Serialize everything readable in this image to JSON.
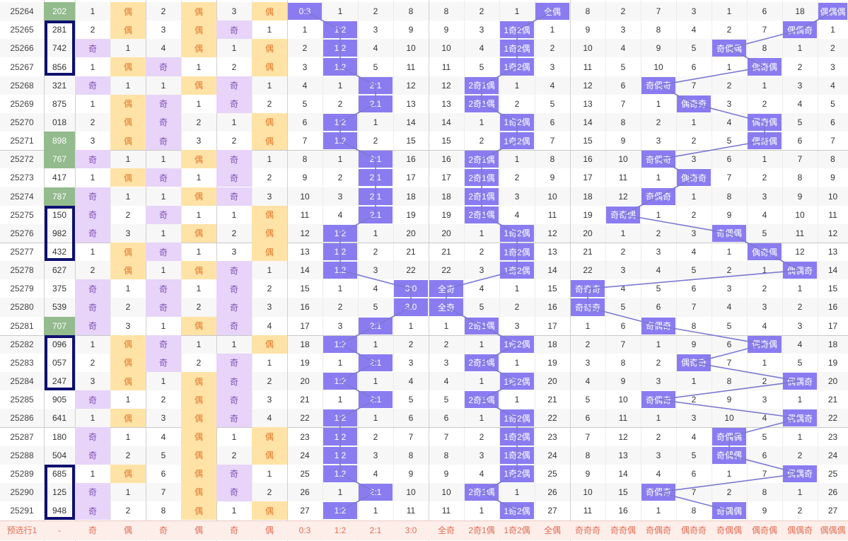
{
  "colors": {
    "purple_badge": "#8a7cf0",
    "ji_bg": "#e7d4f8",
    "ou_bg": "#ffe3a6",
    "ou_text": "#e0772a",
    "green_num": "#93bb8d",
    "footer_bg": "#fdeeea",
    "footer_text": "#e06e54",
    "line_color": "#7b79d1",
    "box_border": "#0f1070"
  },
  "rows": [
    {
      "period": "25264",
      "num": "202",
      "g": 1,
      "c3": "1",
      "c4": "偶",
      "c5": "2",
      "c6": "偶",
      "c7": "3",
      "c8": "偶",
      "c9": "0:3",
      "c10": "1",
      "c11": "2",
      "c12": "8",
      "c13": "8",
      "c14": "2",
      "c15": "1",
      "c16": "全偶",
      "c17": "8",
      "c18": "2",
      "c19": "7",
      "c20": "3",
      "c21": "1",
      "c22": "6",
      "c23": "18",
      "c24": "偶偶偶"
    },
    {
      "period": "25265",
      "num": "281",
      "c3": "2",
      "c4": "偶",
      "c5": "3",
      "c6": "偶",
      "c7": "奇",
      "c8": "1",
      "c9": "1",
      "c10": "1:2",
      "c11": "3",
      "c12": "9",
      "c13": "9",
      "c14": "3",
      "c15": "1奇2偶",
      "c16": "1",
      "c17": "9",
      "c18": "3",
      "c19": "8",
      "c20": "4",
      "c21": "2",
      "c22": "7",
      "c23": "偶偶奇",
      "c24": "1"
    },
    {
      "period": "25266",
      "num": "742",
      "c3": "奇",
      "c4": "1",
      "c5": "4",
      "c6": "偶",
      "c7": "1",
      "c8": "偶",
      "c9": "2",
      "c10": "1:2",
      "c11": "4",
      "c12": "10",
      "c13": "10",
      "c14": "4",
      "c15": "1奇2偶",
      "c16": "2",
      "c17": "10",
      "c18": "4",
      "c19": "9",
      "c20": "5",
      "c21": "奇偶偶",
      "c22": "8",
      "c23": "1",
      "c24": "2"
    },
    {
      "period": "25267",
      "num": "856",
      "c3": "1",
      "c4": "偶",
      "c5": "奇",
      "c6": "1",
      "c7": "2",
      "c8": "偶",
      "c9": "3",
      "c10": "1:2",
      "c11": "5",
      "c12": "11",
      "c13": "11",
      "c14": "5",
      "c15": "1奇2偶",
      "c16": "3",
      "c17": "11",
      "c18": "5",
      "c19": "10",
      "c20": "6",
      "c21": "1",
      "c22": "偶奇偶",
      "c23": "2",
      "c24": "3"
    },
    {
      "period": "25268",
      "num": "321",
      "c3": "奇",
      "c4": "1",
      "c5": "1",
      "c6": "偶",
      "c7": "奇",
      "c8": "1",
      "c9": "4",
      "c10": "1",
      "c11": "2:1",
      "c12": "12",
      "c13": "12",
      "c14": "2奇1偶",
      "c15": "1",
      "c16": "4",
      "c17": "12",
      "c18": "6",
      "c19": "奇偶奇",
      "c20": "7",
      "c21": "2",
      "c22": "1",
      "c23": "3",
      "c24": "4"
    },
    {
      "period": "25269",
      "num": "875",
      "c3": "1",
      "c4": "偶",
      "c5": "奇",
      "c6": "1",
      "c7": "奇",
      "c8": "2",
      "c9": "5",
      "c10": "2",
      "c11": "2:1",
      "c12": "13",
      "c13": "13",
      "c14": "2奇1偶",
      "c15": "2",
      "c16": "5",
      "c17": "13",
      "c18": "7",
      "c19": "1",
      "c20": "偶奇奇",
      "c21": "3",
      "c22": "2",
      "c23": "4",
      "c24": "5"
    },
    {
      "period": "25270",
      "num": "018",
      "c3": "2",
      "c4": "偶",
      "c5": "奇",
      "c6": "2",
      "c7": "1",
      "c8": "偶",
      "c9": "6",
      "c10": "1:2",
      "c11": "1",
      "c12": "14",
      "c13": "14",
      "c14": "1",
      "c15": "1奇2偶",
      "c16": "6",
      "c17": "14",
      "c18": "8",
      "c19": "2",
      "c20": "1",
      "c21": "4",
      "c22": "偶奇偶",
      "c23": "5",
      "c24": "6"
    },
    {
      "period": "25271",
      "num": "898",
      "g": 1,
      "c3": "3",
      "c4": "偶",
      "c5": "奇",
      "c6": "3",
      "c7": "2",
      "c8": "偶",
      "c9": "7",
      "c10": "1:2",
      "c11": "2",
      "c12": "15",
      "c13": "15",
      "c14": "2",
      "c15": "1奇2偶",
      "c16": "7",
      "c17": "15",
      "c18": "9",
      "c19": "3",
      "c20": "2",
      "c21": "5",
      "c22": "偶奇偶",
      "c23": "6",
      "c24": "7"
    },
    {
      "period": "25272",
      "num": "767",
      "g": 1,
      "c3": "奇",
      "c4": "1",
      "c5": "1",
      "c6": "偶",
      "c7": "奇",
      "c8": "1",
      "c9": "8",
      "c10": "1",
      "c11": "2:1",
      "c12": "16",
      "c13": "16",
      "c14": "2奇1偶",
      "c15": "1",
      "c16": "8",
      "c17": "16",
      "c18": "10",
      "c19": "奇偶奇",
      "c20": "3",
      "c21": "6",
      "c22": "1",
      "c23": "7",
      "c24": "8"
    },
    {
      "period": "25273",
      "num": "417",
      "c3": "1",
      "c4": "偶",
      "c5": "奇",
      "c6": "1",
      "c7": "奇",
      "c8": "2",
      "c9": "9",
      "c10": "2",
      "c11": "2:1",
      "c12": "17",
      "c13": "17",
      "c14": "2奇1偶",
      "c15": "2",
      "c16": "9",
      "c17": "17",
      "c18": "11",
      "c19": "1",
      "c20": "偶奇奇",
      "c21": "7",
      "c22": "2",
      "c23": "8",
      "c24": "9"
    },
    {
      "period": "25274",
      "num": "787",
      "g": 1,
      "c3": "奇",
      "c4": "1",
      "c5": "1",
      "c6": "偶",
      "c7": "奇",
      "c8": "3",
      "c9": "10",
      "c10": "3",
      "c11": "2:1",
      "c12": "18",
      "c13": "18",
      "c14": "2奇1偶",
      "c15": "3",
      "c16": "10",
      "c17": "18",
      "c18": "12",
      "c19": "奇偶奇",
      "c20": "1",
      "c21": "8",
      "c22": "3",
      "c23": "9",
      "c24": "10"
    },
    {
      "period": "25275",
      "num": "150",
      "c3": "奇",
      "c4": "2",
      "c5": "奇",
      "c6": "1",
      "c7": "1",
      "c8": "偶",
      "c9": "11",
      "c10": "4",
      "c11": "2:1",
      "c12": "19",
      "c13": "19",
      "c14": "2奇1偶",
      "c15": "4",
      "c16": "11",
      "c17": "19",
      "c18": "奇奇偶",
      "c19": "1",
      "c20": "2",
      "c21": "9",
      "c22": "4",
      "c23": "10",
      "c24": "11"
    },
    {
      "period": "25276",
      "num": "982",
      "c3": "奇",
      "c4": "3",
      "c5": "1",
      "c6": "偶",
      "c7": "2",
      "c8": "偶",
      "c9": "12",
      "c10": "1:2",
      "c11": "1",
      "c12": "20",
      "c13": "20",
      "c14": "1",
      "c15": "1奇2偶",
      "c16": "12",
      "c17": "20",
      "c18": "1",
      "c19": "2",
      "c20": "3",
      "c21": "奇偶偶",
      "c22": "5",
      "c23": "11",
      "c24": "12"
    },
    {
      "period": "25277",
      "num": "432",
      "c3": "1",
      "c4": "偶",
      "c5": "奇",
      "c6": "1",
      "c7": "3",
      "c8": "偶",
      "c9": "13",
      "c10": "1:2",
      "c11": "2",
      "c12": "21",
      "c13": "21",
      "c14": "2",
      "c15": "1奇2偶",
      "c16": "13",
      "c17": "21",
      "c18": "2",
      "c19": "3",
      "c20": "4",
      "c21": "1",
      "c22": "偶奇偶",
      "c23": "12",
      "c24": "13"
    },
    {
      "period": "25278",
      "num": "627",
      "c3": "2",
      "c4": "偶",
      "c5": "1",
      "c6": "偶",
      "c7": "奇",
      "c8": "1",
      "c9": "14",
      "c10": "1:2",
      "c11": "3",
      "c12": "22",
      "c13": "22",
      "c14": "3",
      "c15": "1奇2偶",
      "c16": "14",
      "c17": "22",
      "c18": "3",
      "c19": "4",
      "c20": "5",
      "c21": "2",
      "c22": "1",
      "c23": "偶偶奇",
      "c24": "14"
    },
    {
      "period": "25279",
      "num": "375",
      "c3": "奇",
      "c4": "1",
      "c5": "奇",
      "c6": "1",
      "c7": "奇",
      "c8": "2",
      "c9": "15",
      "c10": "1",
      "c11": "4",
      "c12": "3:0",
      "c13": "全奇",
      "c14": "4",
      "c15": "1",
      "c16": "15",
      "c17": "奇奇奇",
      "c18": "4",
      "c19": "5",
      "c20": "6",
      "c21": "3",
      "c22": "2",
      "c23": "1",
      "c24": "15"
    },
    {
      "period": "25280",
      "num": "539",
      "c3": "奇",
      "c4": "2",
      "c5": "奇",
      "c6": "2",
      "c7": "奇",
      "c8": "3",
      "c9": "16",
      "c10": "2",
      "c11": "5",
      "c12": "3:0",
      "c13": "全奇",
      "c14": "5",
      "c15": "2",
      "c16": "16",
      "c17": "奇奇奇",
      "c18": "5",
      "c19": "6",
      "c20": "7",
      "c21": "4",
      "c22": "3",
      "c23": "2",
      "c24": "16"
    },
    {
      "period": "25281",
      "num": "707",
      "g": 1,
      "c3": "奇",
      "c4": "3",
      "c5": "1",
      "c6": "偶",
      "c7": "奇",
      "c8": "4",
      "c9": "17",
      "c10": "3",
      "c11": "2:1",
      "c12": "1",
      "c13": "1",
      "c14": "2奇1偶",
      "c15": "3",
      "c16": "17",
      "c17": "1",
      "c18": "6",
      "c19": "奇偶奇",
      "c20": "8",
      "c21": "5",
      "c22": "4",
      "c23": "3",
      "c24": "17"
    },
    {
      "period": "25282",
      "num": "096",
      "c3": "1",
      "c4": "偶",
      "c5": "奇",
      "c6": "1",
      "c7": "1",
      "c8": "偶",
      "c9": "18",
      "c10": "1:2",
      "c11": "1",
      "c12": "2",
      "c13": "2",
      "c14": "1",
      "c15": "1奇2偶",
      "c16": "18",
      "c17": "2",
      "c18": "7",
      "c19": "1",
      "c20": "9",
      "c21": "6",
      "c22": "偶奇偶",
      "c23": "4",
      "c24": "18"
    },
    {
      "period": "25283",
      "num": "057",
      "c3": "2",
      "c4": "偶",
      "c5": "奇",
      "c6": "2",
      "c7": "奇",
      "c8": "1",
      "c9": "19",
      "c10": "1",
      "c11": "2:1",
      "c12": "3",
      "c13": "3",
      "c14": "2奇1偶",
      "c15": "1",
      "c16": "19",
      "c17": "3",
      "c18": "8",
      "c19": "2",
      "c20": "偶奇奇",
      "c21": "7",
      "c22": "1",
      "c23": "5",
      "c24": "19"
    },
    {
      "period": "25284",
      "num": "247",
      "c3": "3",
      "c4": "偶",
      "c5": "1",
      "c6": "偶",
      "c7": "奇",
      "c8": "2",
      "c9": "20",
      "c10": "1:2",
      "c11": "1",
      "c12": "4",
      "c13": "4",
      "c14": "1",
      "c15": "1奇2偶",
      "c16": "20",
      "c17": "4",
      "c18": "9",
      "c19": "3",
      "c20": "1",
      "c21": "8",
      "c22": "2",
      "c23": "偶偶奇",
      "c24": "20"
    },
    {
      "period": "25285",
      "num": "905",
      "c3": "奇",
      "c4": "1",
      "c5": "2",
      "c6": "偶",
      "c7": "奇",
      "c8": "3",
      "c9": "21",
      "c10": "1",
      "c11": "2:1",
      "c12": "5",
      "c13": "5",
      "c14": "2奇1偶",
      "c15": "1",
      "c16": "21",
      "c17": "5",
      "c18": "10",
      "c19": "奇偶奇",
      "c20": "2",
      "c21": "9",
      "c22": "3",
      "c23": "1",
      "c24": "21"
    },
    {
      "period": "25286",
      "num": "641",
      "c3": "1",
      "c4": "偶",
      "c5": "3",
      "c6": "偶",
      "c7": "奇",
      "c8": "4",
      "c9": "22",
      "c10": "1:2",
      "c11": "1",
      "c12": "6",
      "c13": "6",
      "c14": "1",
      "c15": "1奇2偶",
      "c16": "22",
      "c17": "6",
      "c18": "11",
      "c19": "1",
      "c20": "3",
      "c21": "10",
      "c22": "4",
      "c23": "偶偶奇",
      "c24": "22"
    },
    {
      "period": "25287",
      "num": "180",
      "c3": "奇",
      "c4": "1",
      "c5": "4",
      "c6": "偶",
      "c7": "1",
      "c8": "偶",
      "c9": "23",
      "c10": "1:2",
      "c11": "2",
      "c12": "7",
      "c13": "7",
      "c14": "2",
      "c15": "1奇2偶",
      "c16": "23",
      "c17": "7",
      "c18": "12",
      "c19": "2",
      "c20": "4",
      "c21": "奇偶偶",
      "c22": "5",
      "c23": "1",
      "c24": "23"
    },
    {
      "period": "25288",
      "num": "504",
      "c3": "奇",
      "c4": "2",
      "c5": "5",
      "c6": "偶",
      "c7": "2",
      "c8": "偶",
      "c9": "24",
      "c10": "1:2",
      "c11": "3",
      "c12": "8",
      "c13": "8",
      "c14": "3",
      "c15": "1奇2偶",
      "c16": "24",
      "c17": "8",
      "c18": "13",
      "c19": "3",
      "c20": "5",
      "c21": "奇偶偶",
      "c22": "6",
      "c23": "2",
      "c24": "24"
    },
    {
      "period": "25289",
      "num": "685",
      "c3": "1",
      "c4": "偶",
      "c5": "6",
      "c6": "偶",
      "c7": "奇",
      "c8": "1",
      "c9": "25",
      "c10": "1:2",
      "c11": "4",
      "c12": "9",
      "c13": "9",
      "c14": "4",
      "c15": "1奇2偶",
      "c16": "25",
      "c17": "9",
      "c18": "14",
      "c19": "4",
      "c20": "6",
      "c21": "1",
      "c22": "7",
      "c23": "偶偶奇",
      "c24": "25"
    },
    {
      "period": "25290",
      "num": "125",
      "c3": "奇",
      "c4": "1",
      "c5": "7",
      "c6": "偶",
      "c7": "奇",
      "c8": "2",
      "c9": "26",
      "c10": "1",
      "c11": "2:1",
      "c12": "10",
      "c13": "10",
      "c14": "2奇1偶",
      "c15": "1",
      "c16": "26",
      "c17": "10",
      "c18": "15",
      "c19": "奇偶奇",
      "c20": "7",
      "c21": "2",
      "c22": "8",
      "c23": "1",
      "c24": "26"
    },
    {
      "period": "25291",
      "num": "948",
      "c3": "奇",
      "c4": "2",
      "c5": "8",
      "c6": "偶",
      "c7": "1",
      "c8": "偶",
      "c9": "27",
      "c10": "1:2",
      "c11": "1",
      "c12": "11",
      "c13": "11",
      "c14": "1",
      "c15": "1奇2偶",
      "c16": "27",
      "c17": "11",
      "c18": "16",
      "c19": "1",
      "c20": "8",
      "c21": "奇偶偶",
      "c22": "9",
      "c23": "2",
      "c24": "27"
    }
  ],
  "footer": [
    "预选行1",
    "-",
    "奇",
    "偶",
    "奇",
    "偶",
    "奇",
    "偶",
    "0:3",
    "1:2",
    "2:1",
    "3:0",
    "全奇",
    "2奇1偶",
    "1奇2偶",
    "全偶",
    "奇奇奇",
    "奇奇偶",
    "奇偶奇",
    "偶奇奇",
    "奇偶偶",
    "偶奇偶",
    "偶偶奇",
    "偶偶偶"
  ]
}
